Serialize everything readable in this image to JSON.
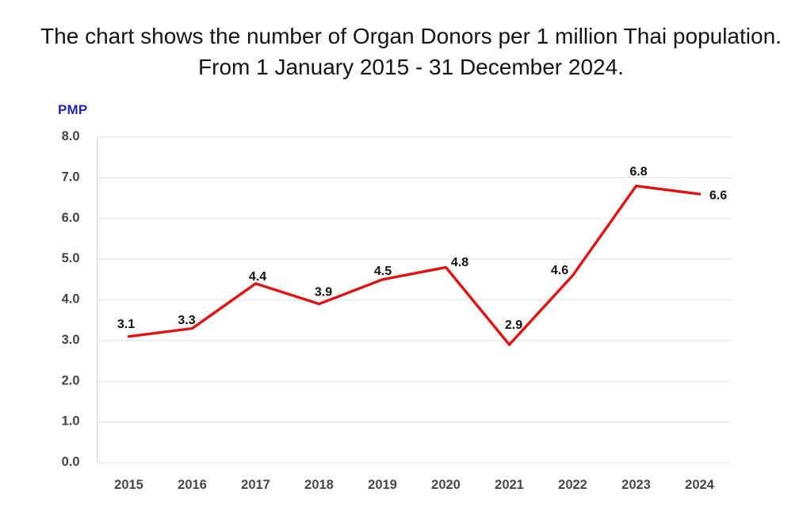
{
  "title": {
    "line1": "The chart shows the number of Organ Donors per 1 million Thai population.",
    "line2": "From 1 January 2015 - 31 December 2024."
  },
  "chart_data": {
    "type": "line",
    "title": "The chart shows the number of Organ Donors per 1 million Thai population. From 1 January 2015 - 31 December 2024.",
    "ylabel": "PMP",
    "xlabel": "",
    "categories": [
      "2015",
      "2016",
      "2017",
      "2018",
      "2019",
      "2020",
      "2021",
      "2022",
      "2023",
      "2024"
    ],
    "series": [
      {
        "name": "Organ Donors per 1 million Thai population (PMP)",
        "values": [
          3.1,
          3.3,
          4.4,
          3.9,
          4.5,
          4.8,
          2.9,
          4.6,
          6.8,
          6.6
        ]
      }
    ],
    "data_labels": [
      "3.1",
      "3.3",
      "4.4",
      "3.9",
      "4.5",
      "4.8",
      "2.9",
      "4.6",
      "6.8",
      "6.6"
    ],
    "ylim": [
      0.0,
      8.0
    ],
    "ytick_step": 1.0,
    "ytick_labels": [
      "0.0",
      "1.0",
      "2.0",
      "3.0",
      "4.0",
      "5.0",
      "6.0",
      "7.0",
      "8.0"
    ],
    "grid": "horizontal",
    "legend": "none"
  },
  "colors": {
    "line": "#e11212",
    "data_label": "#111111",
    "ytick_label": "#444444",
    "xtick_label": "#474747",
    "gridline": "#e7e7e7",
    "axis_line": "#d9d9d9",
    "y_axis_title": "#2526ad",
    "background": "#ffffff",
    "title_text": "#141414"
  }
}
